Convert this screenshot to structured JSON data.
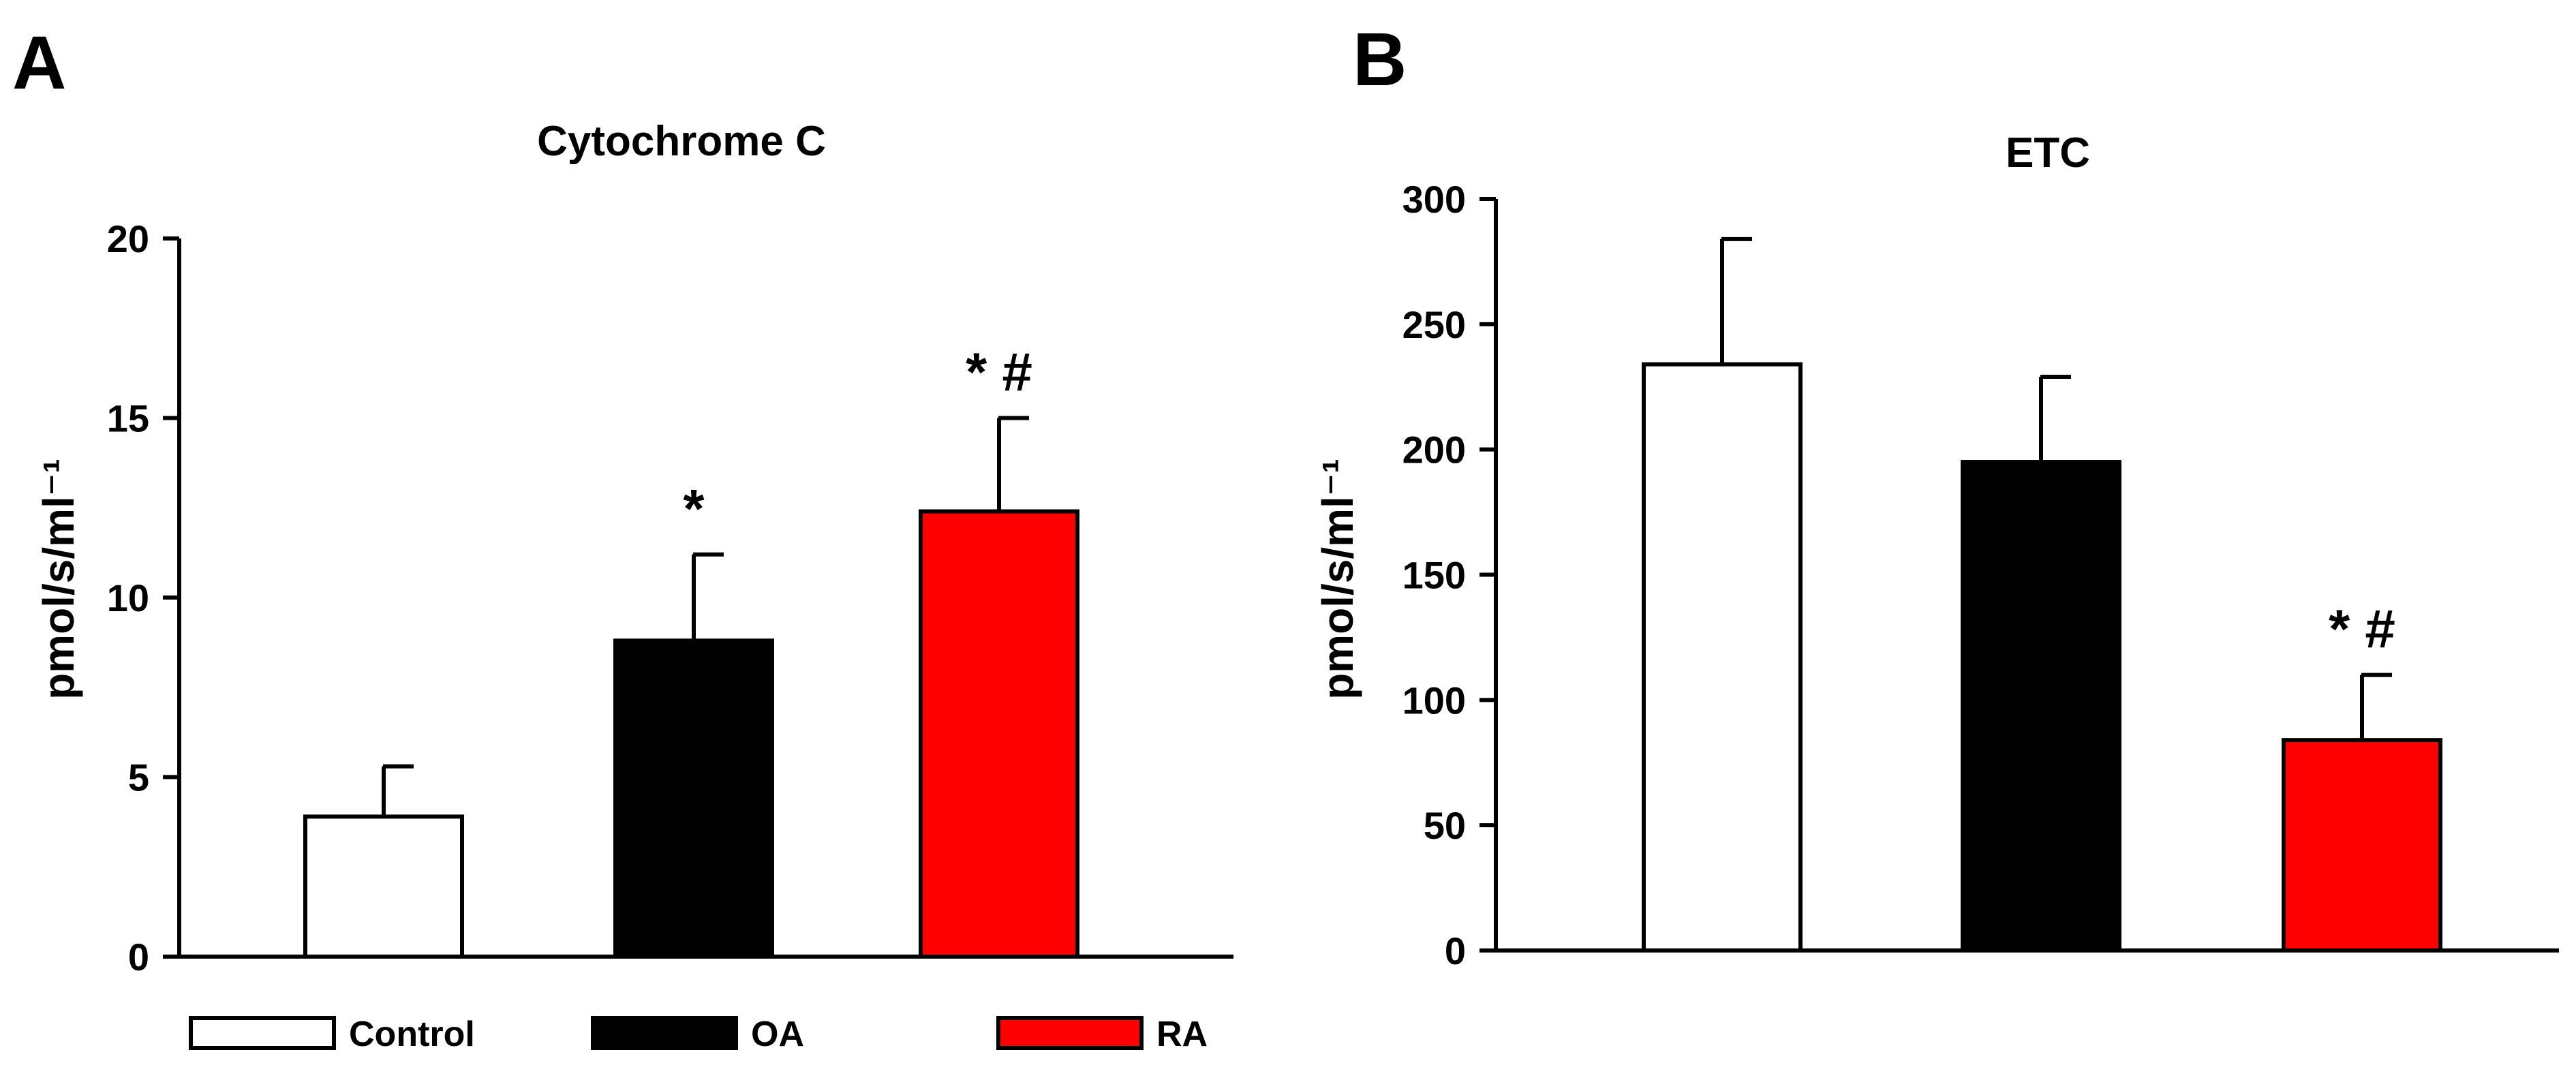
{
  "chart_data": [
    {
      "panel": "A",
      "type": "bar",
      "title": "Cytochrome C",
      "xlabel": "",
      "ylabel": "pmol/s/ml⁻¹",
      "ylim": [
        0,
        20
      ],
      "yticks": [
        0,
        5,
        10,
        15,
        20
      ],
      "categories": [
        "Control",
        "OA",
        "RA"
      ],
      "values": [
        3.9,
        8.8,
        12.4
      ],
      "errors": [
        1.4,
        2.4,
        2.6
      ],
      "annotations": [
        "",
        "*",
        "* #"
      ],
      "colors": [
        "#ffffff",
        "#000000",
        "#ff0000"
      ]
    },
    {
      "panel": "B",
      "type": "bar",
      "title": "ETC",
      "xlabel": "",
      "ylabel": "pmol/s/ml⁻¹",
      "ylim": [
        0,
        300
      ],
      "yticks": [
        0,
        50,
        100,
        150,
        200,
        250,
        300
      ],
      "categories": [
        "Control",
        "OA",
        "RA"
      ],
      "values": [
        234,
        195,
        84
      ],
      "errors": [
        50,
        34,
        26
      ],
      "annotations": [
        "",
        "",
        "* #"
      ],
      "colors": [
        "#ffffff",
        "#000000",
        "#ff0000"
      ]
    }
  ],
  "legend": {
    "entries": [
      {
        "label": "Control",
        "color": "#ffffff"
      },
      {
        "label": "OA",
        "color": "#000000"
      },
      {
        "label": "RA",
        "color": "#ff0000"
      }
    ]
  }
}
